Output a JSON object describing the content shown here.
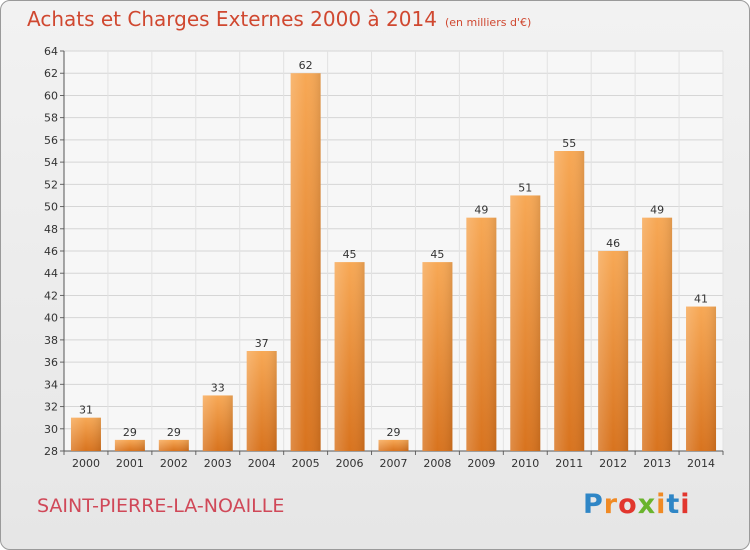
{
  "header": {
    "title": "Achats et Charges Externes 2000 à 2014",
    "subtitle": "(en milliers d'€)"
  },
  "footer": {
    "town": "SAINT-PIERRE-LA-NOAILLE"
  },
  "logo": {
    "text": "Proxiti",
    "letters": [
      "P",
      "r",
      "o",
      "x",
      "i",
      "t",
      "i"
    ],
    "colors": [
      "#2f86c6",
      "#f08a24",
      "#e2362e",
      "#6ab42d",
      "#f08a24",
      "#2f86c6",
      "#e2362e"
    ]
  },
  "chart_data": {
    "type": "bar",
    "title": "Achats et Charges Externes 2000 à 2014",
    "subtitle": "(en milliers d'€)",
    "xlabel": "",
    "ylabel": "",
    "categories": [
      "2000",
      "2001",
      "2002",
      "2003",
      "2004",
      "2005",
      "2006",
      "2007",
      "2008",
      "2009",
      "2010",
      "2011",
      "2012",
      "2013",
      "2014"
    ],
    "values": [
      31,
      29,
      29,
      33,
      37,
      62,
      45,
      29,
      45,
      49,
      51,
      55,
      46,
      49,
      41
    ],
    "ylim": [
      28,
      64
    ],
    "yticks": [
      28,
      30,
      32,
      34,
      36,
      38,
      40,
      42,
      44,
      46,
      48,
      50,
      52,
      54,
      56,
      58,
      60,
      62,
      64
    ],
    "grid": true,
    "bar_color_top": "#f7a855",
    "bar_color_bottom": "#d8731e"
  }
}
